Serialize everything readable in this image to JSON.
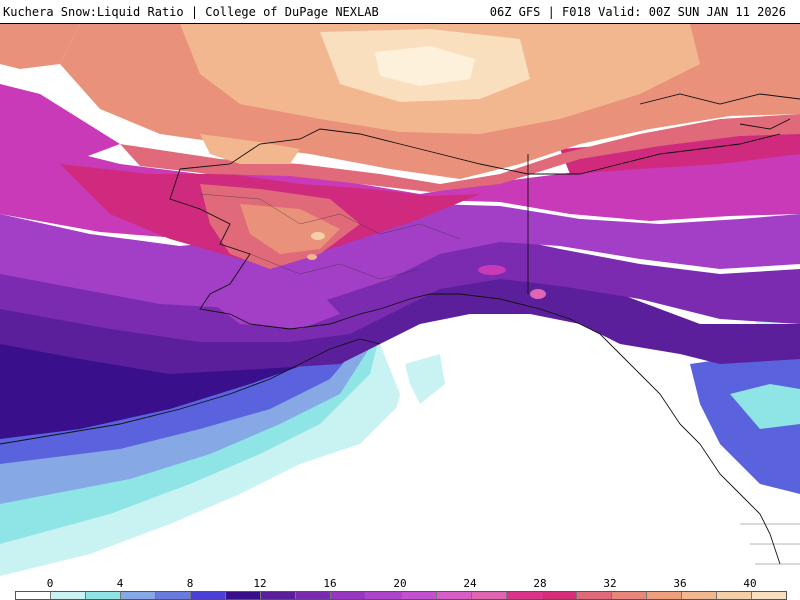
{
  "header": {
    "left_title": "Kuchera Snow:Liquid Ratio | College of DuPage NEXLAB",
    "right_title": "06Z GFS | F018 Valid: 00Z SUN JAN 11 2026"
  },
  "colorbar": {
    "labels": [
      "0",
      "4",
      "8",
      "12",
      "16",
      "20",
      "24",
      "28",
      "32",
      "36",
      "40"
    ],
    "colors": [
      "#ffffff",
      "#c9f3f2",
      "#8fe4e6",
      "#86a9e6",
      "#6a7be0",
      "#4a3fd6",
      "#3a0f8c",
      "#5b1f9c",
      "#7a2bb0",
      "#9637c2",
      "#ad44cc",
      "#c250d0",
      "#d65ec6",
      "#e066b4",
      "#d9338a",
      "#d62e78",
      "#e06a7a",
      "#e6877a",
      "#eea07c",
      "#f2b78e",
      "#f6cfa6",
      "#f9dfbe"
    ]
  },
  "map_colors": {
    "ocean_white": "#ffffff",
    "cyan_light": "#c9f3f2",
    "cyan": "#8fe4e6",
    "blue_light": "#86a9e6",
    "blue": "#5a62dd",
    "indigo": "#3a0f8c",
    "purple_dark": "#5b1f9c",
    "purple": "#7a2bb0",
    "violet": "#a33fc6",
    "magenta": "#c83ab8",
    "pink_deep": "#d02a7e",
    "rose": "#e06a7a",
    "salmon": "#e9917a",
    "peach": "#f2b78e",
    "cream": "#f9dfbe"
  }
}
